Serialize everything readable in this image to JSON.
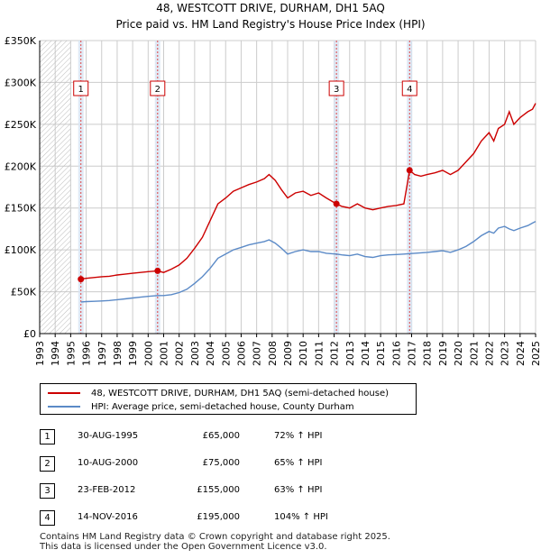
{
  "header": {
    "title": "48, WESTCOTT DRIVE, DURHAM, DH1 5AQ",
    "subtitle": "Price paid vs. HM Land Registry's House Price Index (HPI)"
  },
  "legend": {
    "property": "48, WESTCOTT DRIVE, DURHAM, DH1 5AQ (semi-detached house)",
    "hpi": "HPI: Average price, semi-detached house, County Durham"
  },
  "sales": [
    {
      "num": "1",
      "date": "30-AUG-1995",
      "price": "£65,000",
      "hpi": "72% ↑ HPI"
    },
    {
      "num": "2",
      "date": "10-AUG-2000",
      "price": "£75,000",
      "hpi": "65% ↑ HPI"
    },
    {
      "num": "3",
      "date": "23-FEB-2012",
      "price": "£155,000",
      "hpi": "63% ↑ HPI"
    },
    {
      "num": "4",
      "date": "14-NOV-2016",
      "price": "£195,000",
      "hpi": "104% ↑ HPI"
    }
  ],
  "footer": {
    "line1": "Contains HM Land Registry data © Crown copyright and database right 2025.",
    "line2": "This data is licensed under the Open Government Licence v3.0."
  },
  "colors": {
    "property": "#cc0000",
    "hpi": "#5b8ac7",
    "grid": "#cccccc",
    "shade": "#d8e4f2"
  },
  "chart_data": {
    "type": "line",
    "ylim": [
      0,
      350000
    ],
    "xlim": [
      1993,
      2025
    ],
    "y_ticks": [
      {
        "value": 0,
        "label": "£0"
      },
      {
        "value": 50000,
        "label": "£50K"
      },
      {
        "value": 100000,
        "label": "£100K"
      },
      {
        "value": 150000,
        "label": "£150K"
      },
      {
        "value": 200000,
        "label": "£200K"
      },
      {
        "value": 250000,
        "label": "£250K"
      },
      {
        "value": 300000,
        "label": "£300K"
      },
      {
        "value": 350000,
        "label": "£350K"
      }
    ],
    "x_ticks": [
      "1993",
      "1994",
      "1995",
      "1996",
      "1997",
      "1998",
      "1999",
      "2000",
      "2001",
      "2002",
      "2003",
      "2004",
      "2005",
      "2006",
      "2007",
      "2008",
      "2009",
      "2010",
      "2011",
      "2012",
      "2013",
      "2014",
      "2015",
      "2016",
      "2017",
      "2018",
      "2019",
      "2020",
      "2021",
      "2022",
      "2023",
      "2024",
      "2025"
    ],
    "hatched_until": 1995,
    "series": [
      {
        "name": "48, WESTCOTT DRIVE, DURHAM, DH1 5AQ (semi-detached house)",
        "color": "#cc0000",
        "points": [
          [
            1995.66,
            65000
          ],
          [
            1996,
            66000
          ],
          [
            1996.5,
            67000
          ],
          [
            1997,
            68000
          ],
          [
            1997.5,
            68500
          ],
          [
            1998,
            70000
          ],
          [
            1998.5,
            71000
          ],
          [
            1999,
            72000
          ],
          [
            1999.5,
            73000
          ],
          [
            2000,
            74000
          ],
          [
            2000.61,
            75000
          ],
          [
            2001,
            73000
          ],
          [
            2001.5,
            77000
          ],
          [
            2002,
            82000
          ],
          [
            2002.5,
            90000
          ],
          [
            2003,
            102000
          ],
          [
            2003.5,
            115000
          ],
          [
            2004,
            135000
          ],
          [
            2004.5,
            155000
          ],
          [
            2005,
            162000
          ],
          [
            2005.5,
            170000
          ],
          [
            2006,
            174000
          ],
          [
            2006.5,
            178000
          ],
          [
            2007,
            181000
          ],
          [
            2007.5,
            185000
          ],
          [
            2007.8,
            190000
          ],
          [
            2008.2,
            183000
          ],
          [
            2008.6,
            172000
          ],
          [
            2009,
            162000
          ],
          [
            2009.5,
            168000
          ],
          [
            2010,
            170000
          ],
          [
            2010.5,
            165000
          ],
          [
            2011,
            168000
          ],
          [
            2011.5,
            162000
          ],
          [
            2012.15,
            155000
          ],
          [
            2012.5,
            152000
          ],
          [
            2013,
            150000
          ],
          [
            2013.5,
            155000
          ],
          [
            2014,
            150000
          ],
          [
            2014.5,
            148000
          ],
          [
            2015,
            150000
          ],
          [
            2015.5,
            152000
          ],
          [
            2016,
            153000
          ],
          [
            2016.5,
            155000
          ],
          [
            2016.87,
            195000
          ],
          [
            2017.2,
            190000
          ],
          [
            2017.6,
            188000
          ],
          [
            2018,
            190000
          ],
          [
            2018.5,
            192000
          ],
          [
            2019,
            195000
          ],
          [
            2019.5,
            190000
          ],
          [
            2020,
            195000
          ],
          [
            2020.5,
            205000
          ],
          [
            2021,
            215000
          ],
          [
            2021.5,
            230000
          ],
          [
            2022,
            240000
          ],
          [
            2022.3,
            230000
          ],
          [
            2022.6,
            245000
          ],
          [
            2023,
            250000
          ],
          [
            2023.3,
            265000
          ],
          [
            2023.6,
            250000
          ],
          [
            2024,
            258000
          ],
          [
            2024.5,
            265000
          ],
          [
            2024.8,
            268000
          ],
          [
            2025,
            275000
          ]
        ]
      },
      {
        "name": "HPI: Average price, semi-detached house, County Durham",
        "color": "#5b8ac7",
        "points": [
          [
            1995.66,
            37800
          ],
          [
            1996,
            38200
          ],
          [
            1996.5,
            38600
          ],
          [
            1997,
            39000
          ],
          [
            1997.5,
            39500
          ],
          [
            1998,
            40500
          ],
          [
            1998.5,
            41500
          ],
          [
            1999,
            42500
          ],
          [
            1999.5,
            43500
          ],
          [
            2000,
            44500
          ],
          [
            2000.61,
            45500
          ],
          [
            2001,
            45500
          ],
          [
            2001.5,
            46500
          ],
          [
            2002,
            49000
          ],
          [
            2002.5,
            53000
          ],
          [
            2003,
            60000
          ],
          [
            2003.5,
            68000
          ],
          [
            2004,
            78000
          ],
          [
            2004.5,
            90000
          ],
          [
            2005,
            95000
          ],
          [
            2005.5,
            100000
          ],
          [
            2006,
            103000
          ],
          [
            2006.5,
            106000
          ],
          [
            2007,
            108000
          ],
          [
            2007.5,
            110000
          ],
          [
            2007.8,
            112000
          ],
          [
            2008.2,
            108000
          ],
          [
            2008.6,
            102000
          ],
          [
            2009,
            95000
          ],
          [
            2009.5,
            98000
          ],
          [
            2010,
            100000
          ],
          [
            2010.5,
            98000
          ],
          [
            2011,
            98000
          ],
          [
            2011.5,
            96000
          ],
          [
            2012.15,
            95000
          ],
          [
            2012.5,
            94000
          ],
          [
            2013,
            93000
          ],
          [
            2013.5,
            95000
          ],
          [
            2014,
            92000
          ],
          [
            2014.5,
            91000
          ],
          [
            2015,
            93000
          ],
          [
            2015.5,
            94000
          ],
          [
            2016,
            94500
          ],
          [
            2016.5,
            95000
          ],
          [
            2016.87,
            95500
          ],
          [
            2017.2,
            96000
          ],
          [
            2017.6,
            96500
          ],
          [
            2018,
            97000
          ],
          [
            2018.5,
            98000
          ],
          [
            2019,
            99000
          ],
          [
            2019.5,
            97000
          ],
          [
            2020,
            100000
          ],
          [
            2020.5,
            104000
          ],
          [
            2021,
            110000
          ],
          [
            2021.5,
            117000
          ],
          [
            2022,
            122000
          ],
          [
            2022.3,
            120000
          ],
          [
            2022.6,
            126000
          ],
          [
            2023,
            128000
          ],
          [
            2023.3,
            125000
          ],
          [
            2023.6,
            123000
          ],
          [
            2024,
            126000
          ],
          [
            2024.5,
            129000
          ],
          [
            2024.8,
            132000
          ],
          [
            2025,
            134000
          ]
        ]
      }
    ],
    "sales_markers": [
      {
        "label": "1",
        "x": 1995.66,
        "y": 65000
      },
      {
        "label": "2",
        "x": 2000.61,
        "y": 75000
      },
      {
        "label": "3",
        "x": 2012.15,
        "y": 155000
      },
      {
        "label": "4",
        "x": 2016.87,
        "y": 195000
      }
    ]
  }
}
